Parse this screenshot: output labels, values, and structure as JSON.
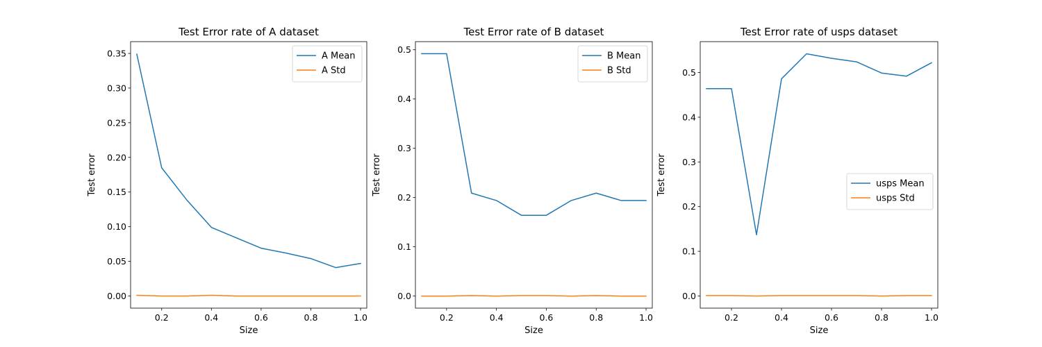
{
  "chart_data": [
    {
      "type": "line",
      "title": "Test Error rate of A dataset",
      "xlabel": "Size",
      "ylabel": "Test error",
      "xlim": [
        0.075,
        1.025
      ],
      "ylim": [
        -0.0175,
        0.367
      ],
      "xticks": [
        "0.2",
        "0.4",
        "0.6",
        "0.8",
        "1.0"
      ],
      "yticks": [
        "0.00",
        "0.05",
        "0.10",
        "0.15",
        "0.20",
        "0.25",
        "0.30",
        "0.35"
      ],
      "x": [
        0.1,
        0.2,
        0.3,
        0.4,
        0.5,
        0.6,
        0.7,
        0.8,
        0.9,
        1.0
      ],
      "series": [
        {
          "name": "A Mean",
          "color": "#1f77b4",
          "values": [
            0.349,
            0.185,
            0.139,
            0.099,
            0.084,
            0.069,
            0.062,
            0.054,
            0.041,
            0.047
          ]
        },
        {
          "name": "A Std",
          "color": "#ff7f0e",
          "values": [
            0.001,
            0.0,
            0.0,
            0.001,
            0.0,
            0.0,
            0.0,
            0.0,
            0.0,
            0.0
          ]
        }
      ],
      "legend": "top-right"
    },
    {
      "type": "line",
      "title": "Test Error rate of B dataset",
      "xlabel": "Size",
      "ylabel": "Test error",
      "xlim": [
        0.075,
        1.025
      ],
      "ylim": [
        -0.0245,
        0.5165
      ],
      "xticks": [
        "0.2",
        "0.4",
        "0.6",
        "0.8",
        "1.0"
      ],
      "yticks": [
        "0.0",
        "0.1",
        "0.2",
        "0.3",
        "0.4",
        "0.5"
      ],
      "x": [
        0.1,
        0.2,
        0.3,
        0.4,
        0.5,
        0.6,
        0.7,
        0.8,
        0.9,
        1.0
      ],
      "series": [
        {
          "name": "B Mean",
          "color": "#1f77b4",
          "values": [
            0.492,
            0.492,
            0.209,
            0.194,
            0.164,
            0.164,
            0.194,
            0.209,
            0.194,
            0.194
          ]
        },
        {
          "name": "B Std",
          "color": "#ff7f0e",
          "values": [
            0.0,
            0.0,
            0.001,
            0.0,
            0.001,
            0.001,
            0.0,
            0.001,
            0.0,
            0.0
          ]
        }
      ],
      "legend": "top-right"
    },
    {
      "type": "line",
      "title": "Test Error rate of usps dataset",
      "xlabel": "Size",
      "ylabel": "Test error",
      "xlim": [
        0.075,
        1.025
      ],
      "ylim": [
        -0.0272,
        0.5692
      ],
      "xticks": [
        "0.2",
        "0.4",
        "0.6",
        "0.8",
        "1.0"
      ],
      "yticks": [
        "0.0",
        "0.1",
        "0.2",
        "0.3",
        "0.4",
        "0.5"
      ],
      "x": [
        0.1,
        0.2,
        0.3,
        0.4,
        0.5,
        0.6,
        0.7,
        0.8,
        0.9,
        1.0
      ],
      "series": [
        {
          "name": "usps Mean",
          "color": "#1f77b4",
          "values": [
            0.464,
            0.464,
            0.137,
            0.486,
            0.542,
            0.532,
            0.524,
            0.499,
            0.492,
            0.522
          ]
        },
        {
          "name": "usps Std",
          "color": "#ff7f0e",
          "values": [
            0.001,
            0.001,
            0.0,
            0.001,
            0.001,
            0.001,
            0.001,
            0.0,
            0.001,
            0.001
          ]
        }
      ],
      "legend": "center-right"
    }
  ]
}
